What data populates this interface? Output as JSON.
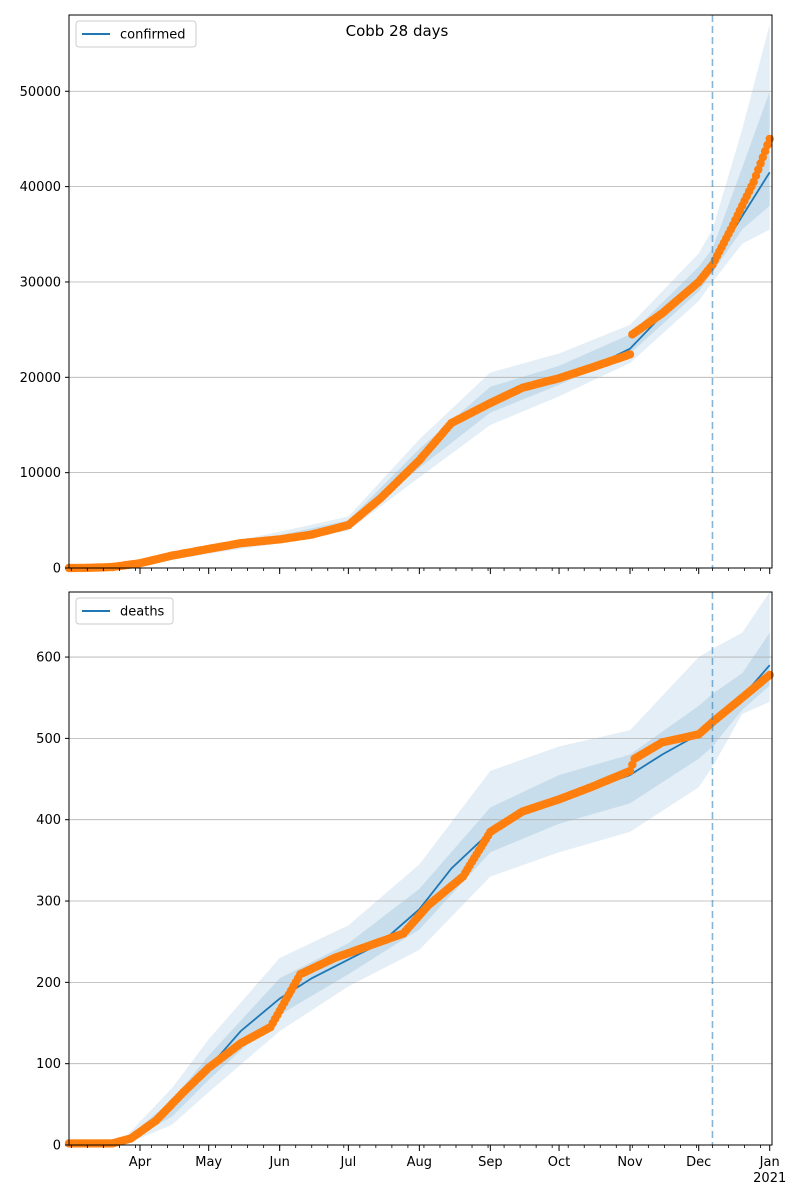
{
  "figure": {
    "title": "Cobb 28 days"
  },
  "chart_data": [
    {
      "type": "line",
      "title": "",
      "xlabel": "",
      "ylabel": "",
      "xlim": [
        "2020-03-01",
        "2021-01-02"
      ],
      "ylim": [
        0,
        58000
      ],
      "yticks": [
        0,
        10000,
        20000,
        30000,
        40000,
        50000
      ],
      "grid": "horizontal",
      "legend": {
        "placement": "top-left",
        "entries": [
          "confirmed"
        ]
      },
      "forecast_start": "2020-12-07",
      "colors": {
        "model": "#1f77b4",
        "band": "#1f77b4",
        "observed": "#ff7f0e",
        "forecast_line": "#1f77b4"
      },
      "series": [
        {
          "name": "confirmed",
          "kind": "line",
          "x": [
            "2020-03-01",
            "2020-03-15",
            "2020-04-01",
            "2020-04-15",
            "2020-05-01",
            "2020-05-15",
            "2020-06-01",
            "2020-06-15",
            "2020-07-01",
            "2020-07-15",
            "2020-08-01",
            "2020-08-15",
            "2020-09-01",
            "2020-09-15",
            "2020-10-01",
            "2020-10-15",
            "2020-11-01",
            "2020-11-15",
            "2020-12-01",
            "2020-12-07",
            "2020-12-15",
            "2021-01-01"
          ],
          "y": [
            0,
            20,
            400,
            1200,
            1900,
            2600,
            3100,
            3700,
            4600,
            7500,
            11500,
            15500,
            17500,
            19000,
            20000,
            21000,
            23000,
            26500,
            30000,
            32000,
            35000,
            41500
          ]
        },
        {
          "name": "",
          "kind": "band",
          "x": [
            "2020-03-01",
            "2020-04-01",
            "2020-05-01",
            "2020-06-01",
            "2020-07-01",
            "2020-08-01",
            "2020-09-01",
            "2020-10-01",
            "2020-11-01",
            "2020-12-01",
            "2020-12-07",
            "2020-12-20",
            "2021-01-01"
          ],
          "lo": [
            0,
            250,
            1500,
            2600,
            3900,
            9500,
            15000,
            18000,
            21500,
            28000,
            30000,
            34000,
            35500
          ],
          "hi": [
            0,
            600,
            2300,
            3800,
            5400,
            13500,
            20500,
            22500,
            25500,
            33000,
            35500,
            46000,
            57000
          ]
        },
        {
          "name": "",
          "kind": "band",
          "x": [
            "2020-03-01",
            "2020-04-01",
            "2020-05-01",
            "2020-06-01",
            "2020-07-01",
            "2020-08-01",
            "2020-09-01",
            "2020-10-01",
            "2020-11-01",
            "2020-12-01",
            "2020-12-07",
            "2020-12-20",
            "2021-01-01"
          ],
          "lo": [
            0,
            330,
            1700,
            2850,
            4250,
            10500,
            16300,
            19200,
            22500,
            29000,
            31000,
            35500,
            38000
          ],
          "hi": [
            0,
            480,
            2100,
            3450,
            5000,
            12500,
            19000,
            21200,
            24500,
            31600,
            33500,
            42000,
            50000
          ]
        },
        {
          "name": "",
          "kind": "points",
          "x": [
            "2020-03-01",
            "2020-03-10",
            "2020-03-20",
            "2020-04-01",
            "2020-04-15",
            "2020-05-01",
            "2020-05-15",
            "2020-06-01",
            "2020-06-15",
            "2020-07-01",
            "2020-07-15",
            "2020-08-01",
            "2020-08-15",
            "2020-09-01",
            "2020-09-15",
            "2020-10-01",
            "2020-10-15",
            "2020-11-01",
            "2020-11-02",
            "2020-11-15",
            "2020-12-01",
            "2020-12-07",
            "2020-12-15",
            "2020-12-25",
            "2021-01-01"
          ],
          "y": [
            0,
            20,
            100,
            500,
            1300,
            2000,
            2600,
            3000,
            3500,
            4500,
            7300,
            11300,
            15200,
            17300,
            18900,
            19900,
            21000,
            22400,
            24500,
            26700,
            30000,
            31800,
            35500,
            40500,
            45000
          ]
        }
      ]
    },
    {
      "type": "line",
      "title": "",
      "xlabel": "",
      "ylabel": "",
      "xlim": [
        "2020-03-01",
        "2021-01-02"
      ],
      "ylim": [
        0,
        680
      ],
      "yticks": [
        0,
        100,
        200,
        300,
        400,
        500,
        600
      ],
      "grid": "horizontal",
      "legend": {
        "placement": "top-left",
        "entries": [
          "deaths"
        ]
      },
      "forecast_start": "2020-12-07",
      "colors": {
        "model": "#1f77b4",
        "band": "#1f77b4",
        "observed": "#ff7f0e",
        "forecast_line": "#1f77b4"
      },
      "xticks": [
        "Apr",
        "May",
        "Jun",
        "Jul",
        "Aug",
        "Sep",
        "Oct",
        "Nov",
        "Dec",
        "Jan"
      ],
      "xticks_year": "2021",
      "series": [
        {
          "name": "deaths",
          "kind": "line",
          "x": [
            "2020-03-01",
            "2020-03-25",
            "2020-04-01",
            "2020-04-15",
            "2020-05-01",
            "2020-05-15",
            "2020-06-01",
            "2020-06-15",
            "2020-07-01",
            "2020-07-15",
            "2020-08-01",
            "2020-08-15",
            "2020-09-01",
            "2020-09-15",
            "2020-10-01",
            "2020-10-15",
            "2020-11-01",
            "2020-11-15",
            "2020-12-01",
            "2020-12-07",
            "2020-12-15",
            "2021-01-01"
          ],
          "y": [
            2,
            3,
            12,
            45,
            95,
            140,
            180,
            205,
            228,
            248,
            290,
            340,
            385,
            410,
            425,
            438,
            455,
            480,
            505,
            520,
            535,
            590
          ]
        },
        {
          "name": "",
          "kind": "band",
          "x": [
            "2020-03-01",
            "2020-03-25",
            "2020-04-15",
            "2020-05-01",
            "2020-06-01",
            "2020-07-01",
            "2020-08-01",
            "2020-09-01",
            "2020-10-01",
            "2020-11-01",
            "2020-12-01",
            "2020-12-07",
            "2020-12-20",
            "2021-01-01"
          ],
          "lo": [
            0,
            0,
            25,
            65,
            140,
            195,
            240,
            330,
            360,
            385,
            440,
            465,
            530,
            545
          ],
          "hi": [
            5,
            8,
            70,
            130,
            230,
            270,
            345,
            460,
            490,
            510,
            600,
            610,
            630,
            680
          ]
        },
        {
          "name": "",
          "kind": "band",
          "x": [
            "2020-03-01",
            "2020-03-25",
            "2020-04-15",
            "2020-05-01",
            "2020-06-01",
            "2020-07-01",
            "2020-08-01",
            "2020-09-01",
            "2020-10-01",
            "2020-11-01",
            "2020-12-01",
            "2020-12-07",
            "2020-12-20",
            "2021-01-01"
          ],
          "lo": [
            1,
            1,
            35,
            80,
            160,
            210,
            265,
            360,
            395,
            420,
            475,
            490,
            535,
            565
          ],
          "hi": [
            4,
            6,
            55,
            110,
            205,
            248,
            315,
            415,
            455,
            480,
            540,
            555,
            580,
            630
          ]
        },
        {
          "name": "",
          "kind": "points",
          "x": [
            "2020-03-01",
            "2020-03-20",
            "2020-03-28",
            "2020-04-08",
            "2020-04-20",
            "2020-05-01",
            "2020-05-15",
            "2020-05-28",
            "2020-06-10",
            "2020-06-25",
            "2020-07-10",
            "2020-07-25",
            "2020-08-05",
            "2020-08-20",
            "2020-09-01",
            "2020-09-15",
            "2020-10-01",
            "2020-10-15",
            "2020-11-01",
            "2020-11-03",
            "2020-11-15",
            "2020-12-01",
            "2020-12-07",
            "2020-12-20",
            "2021-01-01"
          ],
          "y": [
            2,
            2,
            8,
            30,
            65,
            95,
            125,
            145,
            210,
            230,
            245,
            260,
            295,
            330,
            385,
            410,
            425,
            440,
            460,
            475,
            495,
            505,
            520,
            550,
            578
          ]
        }
      ]
    }
  ]
}
